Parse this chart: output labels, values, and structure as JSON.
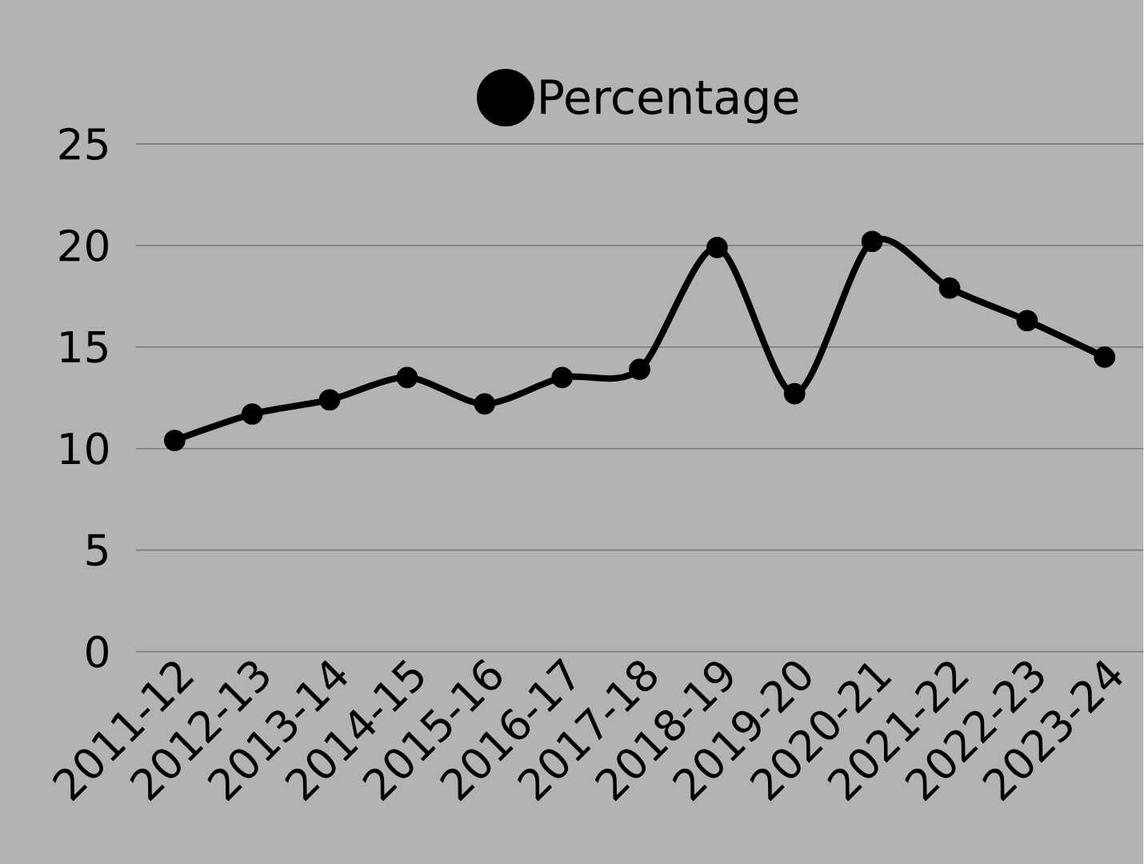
{
  "chart_data": {
    "type": "line",
    "categories": [
      "2011-12",
      "2012-13",
      "2013-14",
      "2014-15",
      "2015-16",
      "2016-17",
      "2017-18",
      "2018-19",
      "2019-20",
      "2020-21",
      "2021-22",
      "2022-23",
      "2023-24"
    ],
    "series": [
      {
        "name": "Percentage",
        "color": "#000000",
        "values": [
          10.4,
          11.7,
          12.4,
          13.5,
          12.2,
          13.5,
          13.9,
          19.9,
          12.7,
          20.2,
          17.9,
          16.3,
          14.5
        ]
      }
    ],
    "ylim": [
      0,
      25
    ],
    "yticks": [
      0,
      5,
      10,
      15,
      20,
      25
    ],
    "grid": "y",
    "legend": "top",
    "marker": "circle",
    "line_style": "solid"
  }
}
